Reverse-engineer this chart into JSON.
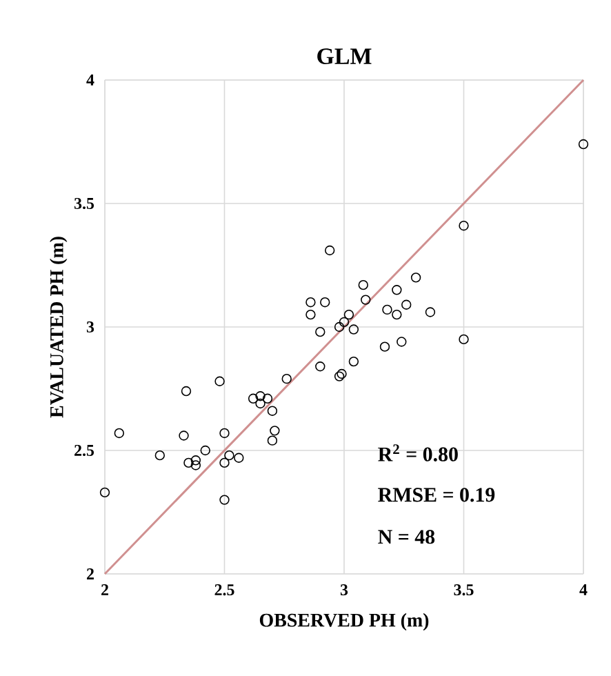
{
  "chart_data": {
    "type": "scatter",
    "title": "GLM",
    "xlabel": "OBSERVED PH  (m)",
    "ylabel": "EVALUATED PH  (m)",
    "xlim": [
      2,
      4
    ],
    "ylim": [
      2,
      4
    ],
    "xticks": [
      2,
      2.5,
      3,
      3.5,
      4
    ],
    "yticks": [
      2,
      2.5,
      3,
      3.5,
      4
    ],
    "grid": true,
    "marker": "circle",
    "annotations": [
      "R$^{2}$ = 0.80",
      "RMSE = 0.19",
      "N = 48"
    ],
    "series": [
      {
        "color": "#000000",
        "x": [
          2.0,
          2.06,
          2.23,
          2.34,
          2.33,
          2.35,
          2.38,
          2.38,
          2.42,
          2.48,
          2.5,
          2.5,
          2.5,
          2.52,
          2.56,
          2.62,
          2.65,
          2.65,
          2.68,
          2.7,
          2.7,
          2.71,
          2.76,
          2.86,
          2.86,
          2.9,
          2.9,
          2.92,
          2.94,
          2.98,
          2.99,
          2.98,
          3.0,
          3.02,
          3.04,
          3.04,
          3.08,
          3.09,
          3.17,
          3.18,
          3.22,
          3.22,
          3.24,
          3.26,
          3.3,
          3.36,
          3.5,
          3.5,
          4.0
        ],
        "values": [
          2.33,
          2.57,
          2.48,
          2.74,
          2.56,
          2.45,
          2.44,
          2.46,
          2.5,
          2.78,
          2.57,
          2.45,
          2.3,
          2.48,
          2.47,
          2.71,
          2.72,
          2.69,
          2.71,
          2.66,
          2.54,
          2.58,
          2.79,
          3.1,
          3.05,
          2.98,
          2.84,
          3.1,
          3.31,
          2.8,
          2.81,
          3.0,
          3.02,
          3.05,
          2.99,
          2.86,
          3.17,
          3.11,
          2.92,
          3.07,
          3.15,
          3.05,
          2.94,
          3.09,
          3.2,
          3.06,
          3.41,
          2.95,
          3.74
        ]
      },
      {
        "type": "line",
        "color": "#d09090",
        "marker": "none",
        "line_style": "solid",
        "x": [
          2,
          4
        ],
        "values": [
          2,
          4
        ]
      }
    ]
  }
}
